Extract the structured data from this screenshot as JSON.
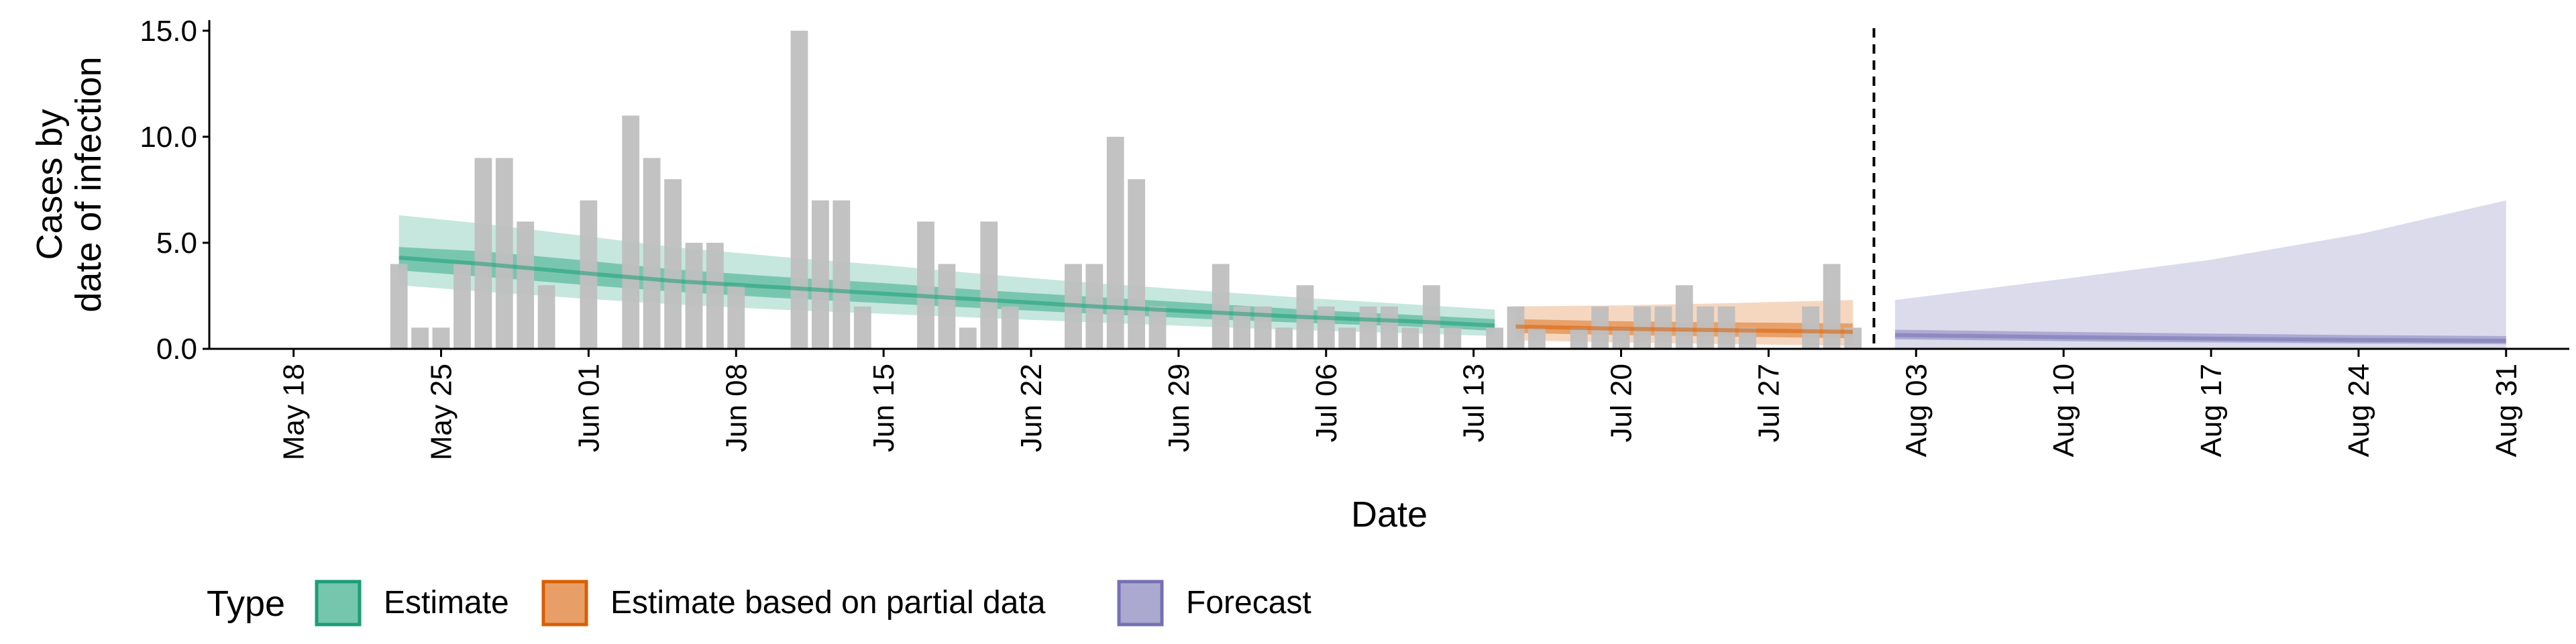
{
  "chart_data": {
    "type": "bar",
    "title": "",
    "xlabel": "Date",
    "ylabel_lines": [
      "Cases by",
      "date of infection"
    ],
    "ylim": [
      0,
      15.5
    ],
    "yticks": [
      0,
      5,
      10,
      15
    ],
    "ytick_labels": [
      "0.0",
      "5.0",
      "10.0",
      "15.0"
    ],
    "xlim": [
      "2020-05-14",
      "2020-09-03"
    ],
    "xtick_dates": [
      "2020-05-18",
      "2020-05-25",
      "2020-06-01",
      "2020-06-08",
      "2020-06-15",
      "2020-06-22",
      "2020-06-29",
      "2020-07-06",
      "2020-07-13",
      "2020-07-20",
      "2020-07-27",
      "2020-08-03",
      "2020-08-10",
      "2020-08-17",
      "2020-08-24",
      "2020-08-31"
    ],
    "xtick_labels": [
      "May 18",
      "May 25",
      "Jun 01",
      "Jun 08",
      "Jun 15",
      "Jun 22",
      "Jun 29",
      "Jul 06",
      "Jul 13",
      "Jul 20",
      "Jul 27",
      "Aug 03",
      "Aug 10",
      "Aug 17",
      "Aug 24",
      "Aug 31"
    ],
    "grid": false,
    "legend_placement": "bottom-left",
    "vline_date": "2020-08-01",
    "bars": {
      "name": "Reported cases",
      "color": "#bfbfbf",
      "dates": [
        "2020-05-23",
        "2020-05-24",
        "2020-05-25",
        "2020-05-26",
        "2020-05-27",
        "2020-05-28",
        "2020-05-29",
        "2020-05-30",
        "2020-05-31",
        "2020-06-01",
        "2020-06-02",
        "2020-06-03",
        "2020-06-04",
        "2020-06-05",
        "2020-06-06",
        "2020-06-07",
        "2020-06-08",
        "2020-06-09",
        "2020-06-10",
        "2020-06-11",
        "2020-06-12",
        "2020-06-13",
        "2020-06-14",
        "2020-06-15",
        "2020-06-16",
        "2020-06-17",
        "2020-06-18",
        "2020-06-19",
        "2020-06-20",
        "2020-06-21",
        "2020-06-22",
        "2020-06-23",
        "2020-06-24",
        "2020-06-25",
        "2020-06-26",
        "2020-06-27",
        "2020-06-28",
        "2020-06-29",
        "2020-06-30",
        "2020-07-01",
        "2020-07-02",
        "2020-07-03",
        "2020-07-04",
        "2020-07-05",
        "2020-07-06",
        "2020-07-07",
        "2020-07-08",
        "2020-07-09",
        "2020-07-10",
        "2020-07-11",
        "2020-07-12",
        "2020-07-13",
        "2020-07-14",
        "2020-07-15",
        "2020-07-16",
        "2020-07-17",
        "2020-07-18",
        "2020-07-19",
        "2020-07-20",
        "2020-07-21",
        "2020-07-22",
        "2020-07-23",
        "2020-07-24",
        "2020-07-25",
        "2020-07-26",
        "2020-07-27",
        "2020-07-28",
        "2020-07-29",
        "2020-07-30",
        "2020-07-31"
      ],
      "values": [
        4,
        1,
        1,
        4,
        9,
        9,
        6,
        3,
        0,
        7,
        0,
        11,
        9,
        8,
        5,
        5,
        3,
        0,
        0,
        15,
        7,
        7,
        2,
        0,
        0,
        6,
        4,
        1,
        6,
        2,
        0,
        0,
        4,
        4,
        10,
        8,
        2,
        0,
        0,
        4,
        2,
        2,
        1,
        3,
        2,
        1,
        2,
        2,
        1,
        3,
        1,
        0,
        1,
        2,
        1,
        0,
        1,
        2,
        1,
        2,
        2,
        3,
        2,
        2,
        1,
        0,
        0,
        2,
        4,
        1
      ]
    },
    "legend": {
      "title": "Type",
      "items": [
        {
          "label": "Estimate",
          "color": "#1b9e77"
        },
        {
          "label": "Estimate based on partial data",
          "color": "#d95f02"
        },
        {
          "label": "Forecast",
          "color": "#7570b3"
        }
      ]
    },
    "series": [
      {
        "name": "Estimate",
        "color": "#1b9e77",
        "dates": [
          "2020-05-23",
          "2020-05-27",
          "2020-06-01",
          "2020-06-05",
          "2020-06-10",
          "2020-06-15",
          "2020-06-20",
          "2020-06-25",
          "2020-06-30",
          "2020-07-05",
          "2020-07-10",
          "2020-07-14"
        ],
        "median": [
          4.3,
          4.0,
          3.55,
          3.2,
          2.9,
          2.6,
          2.3,
          2.0,
          1.75,
          1.5,
          1.3,
          1.1
        ],
        "inner_lower": [
          3.7,
          3.4,
          3.0,
          2.7,
          2.4,
          2.15,
          1.9,
          1.65,
          1.42,
          1.22,
          1.05,
          0.85
        ],
        "inner_upper": [
          4.8,
          4.6,
          4.15,
          3.75,
          3.4,
          3.1,
          2.75,
          2.45,
          2.15,
          1.85,
          1.6,
          1.4
        ],
        "outer_lower": [
          3.0,
          2.7,
          2.35,
          2.1,
          1.85,
          1.65,
          1.45,
          1.25,
          1.05,
          0.88,
          0.73,
          0.6
        ],
        "outer_upper": [
          6.3,
          5.9,
          5.3,
          4.8,
          4.35,
          3.95,
          3.5,
          3.1,
          2.75,
          2.4,
          2.1,
          1.85
        ]
      },
      {
        "name": "Estimate based on partial data",
        "color": "#d95f02",
        "dates": [
          "2020-07-15",
          "2020-07-20",
          "2020-07-25",
          "2020-07-31"
        ],
        "median": [
          1.05,
          0.95,
          0.88,
          0.8
        ],
        "inner_lower": [
          0.75,
          0.65,
          0.58,
          0.5
        ],
        "inner_upper": [
          1.4,
          1.3,
          1.25,
          1.2
        ],
        "outer_lower": [
          0.4,
          0.3,
          0.22,
          0.15
        ],
        "outer_upper": [
          2.0,
          2.05,
          2.15,
          2.3
        ]
      },
      {
        "name": "Forecast",
        "color": "#7570b3",
        "dates": [
          "2020-08-02",
          "2020-08-10",
          "2020-08-17",
          "2020-08-24",
          "2020-08-31"
        ],
        "median": [
          0.65,
          0.55,
          0.48,
          0.42,
          0.38
        ],
        "inner_lower": [
          0.45,
          0.36,
          0.3,
          0.25,
          0.22
        ],
        "inner_upper": [
          0.9,
          0.8,
          0.72,
          0.65,
          0.6
        ],
        "outer_lower": [
          0.05,
          0.04,
          0.03,
          0.02,
          0.02
        ],
        "outer_upper": [
          2.3,
          3.3,
          4.2,
          5.4,
          7.0
        ]
      }
    ]
  }
}
